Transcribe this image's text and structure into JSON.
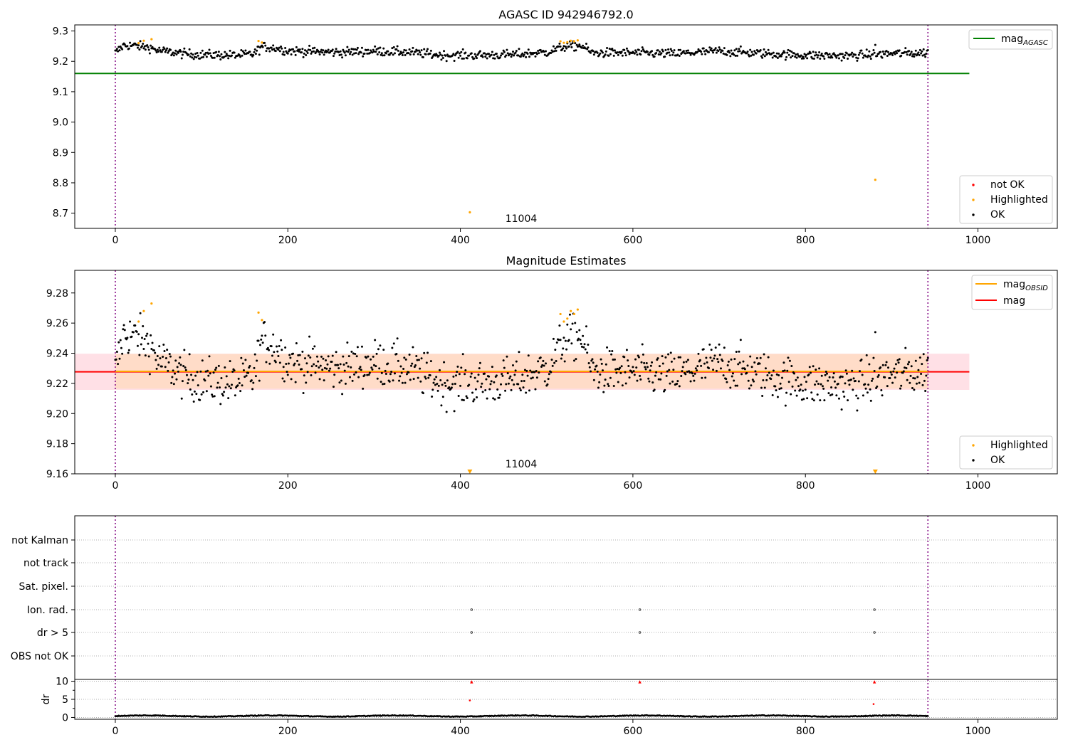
{
  "chart_data": [
    {
      "type": "scatter",
      "title": "AGASC ID 942946792.0",
      "xlim": [
        -47,
        1092
      ],
      "ylim": [
        8.65,
        9.32
      ],
      "xticks": [
        0,
        200,
        400,
        600,
        800,
        1000
      ],
      "yticks": [
        8.7,
        8.8,
        8.9,
        9.0,
        9.1,
        9.2,
        9.3
      ],
      "annotation": {
        "text": "11004",
        "x": 471,
        "y": 8.68
      },
      "vlines": [
        0,
        942
      ],
      "reference_lines": [
        {
          "name": "mag_AGASC",
          "value": 9.16,
          "x_range": [
            -47,
            990
          ],
          "color": "#008000"
        }
      ],
      "series": [
        {
          "name": "not OK",
          "color": "#ff0000",
          "points": []
        },
        {
          "name": "Highlighted",
          "color": "#ffa500",
          "points": [
            [
              27,
              9.26
            ],
            [
              33,
              9.268
            ],
            [
              42,
              9.273
            ],
            [
              166,
              9.267
            ],
            [
              170,
              9.262
            ],
            [
              411,
              8.703
            ],
            [
              516,
              9.266
            ],
            [
              520,
              9.261
            ],
            [
              524,
              9.263
            ],
            [
              528,
              9.268
            ],
            [
              532,
              9.266
            ],
            [
              536,
              9.269
            ],
            [
              881,
              8.81
            ]
          ]
        },
        {
          "name": "OK",
          "color": "#000000",
          "description": "~940 black points (one per observation, x = 0 to 942) fluctuating around mag 9.23, read off the plot: x=0 9.228, x=10 9.253, x=20 9.252, x=30 9.249, x=40 9.246, x=50 9.235, x=60 9.232, x=80 9.225, x=100 9.222, x=120 9.221, x=140 9.220, x=160 9.224, x=170 9.248, x=180 9.246, x=190 9.242, x=200 9.235, x=230 9.232, x=260 9.230, x=300 9.234, x=340 9.230, x=380 9.220, x=420 9.220, x=460 9.222, x=500 9.230, x=520 9.248, x=540 9.252, x=550 9.228, x=600 9.228, x=650 9.225, x=700 9.234, x=750 9.226, x=800 9.220, x=850 9.218, x=900 9.226, x=942 9.228; outliers 9.254 at x=881"
        }
      ],
      "legends": [
        {
          "placement": "upper right",
          "entries": [
            "mag_AGASC"
          ]
        },
        {
          "placement": "lower right",
          "entries": [
            "not OK",
            "Highlighted",
            "OK"
          ]
        }
      ]
    },
    {
      "type": "scatter",
      "title": "Magnitude Estimates",
      "xlim": [
        -47,
        1092
      ],
      "ylim": [
        9.16,
        9.295
      ],
      "xticks": [
        0,
        200,
        400,
        600,
        800,
        1000
      ],
      "yticks": [
        9.16,
        9.18,
        9.2,
        9.22,
        9.24,
        9.26,
        9.28
      ],
      "annotation": {
        "text": "11004",
        "x": 471,
        "y": 9.165
      },
      "vlines": [
        0,
        942
      ],
      "reference_lines": [
        {
          "name": "mag",
          "value": 9.2277,
          "x_range": [
            -47,
            990
          ],
          "color": "#ff0000",
          "band": [
            9.2157,
            9.2397
          ],
          "band_color": "#ffe0e6"
        },
        {
          "name": "mag_OBSID",
          "value": 9.228,
          "x_range": [
            0,
            942
          ],
          "color": "#ffa500",
          "band": [
            9.2165,
            9.2395
          ],
          "band_color": "#ffdcc8"
        }
      ],
      "series": [
        {
          "name": "Highlighted",
          "color": "#ffa500",
          "points": [
            [
              27,
              9.261
            ],
            [
              33,
              9.268
            ],
            [
              42,
              9.273
            ],
            [
              166,
              9.267
            ],
            [
              170,
              9.262
            ],
            [
              516,
              9.266
            ],
            [
              520,
              9.261
            ],
            [
              524,
              9.263
            ],
            [
              528,
              9.268
            ],
            [
              532,
              9.266
            ],
            [
              536,
              9.269
            ]
          ],
          "off_scale_markers": [
            411,
            881
          ]
        },
        {
          "name": "OK",
          "color": "#000000",
          "description": "same ~940 OK points as the top panel on an expanded y-scale, spread roughly 9.20 to 9.255 around 9.228"
        }
      ],
      "legends": [
        {
          "placement": "upper right",
          "entries": [
            "mag_OBSID",
            "mag"
          ]
        },
        {
          "placement": "lower right",
          "entries": [
            "Highlighted",
            "OK"
          ]
        }
      ]
    },
    {
      "type": "scatter",
      "title": "",
      "xlim": [
        -47,
        1092
      ],
      "categories": [
        "not Kalman",
        "not track",
        "Sat. pixel.",
        "Ion. rad.",
        "dr > 5",
        "OBS not OK"
      ],
      "flags": {
        "Ion. rad.": [
          413,
          608,
          880
        ],
        "dr > 5": [
          413,
          608,
          880
        ]
      },
      "vlines": [
        0,
        942
      ]
    },
    {
      "type": "scatter",
      "title": "",
      "ylabel": "dr",
      "xlim": [
        -47,
        1092
      ],
      "ylim": [
        -0.5,
        10.5
      ],
      "yticks": [
        0,
        5,
        10
      ],
      "xticks": [
        0,
        200,
        400,
        600,
        800,
        1000
      ],
      "vlines": [
        0,
        942
      ],
      "series": [
        {
          "name": "dr",
          "color": "#000000",
          "description": "black points near dr 0.1-0.6 for x 0-942"
        },
        {
          "name": "dr > 5",
          "color": "#ff0000",
          "points": [
            [
              413,
              9.8
            ],
            [
              608,
              9.8
            ],
            [
              880,
              9.8
            ],
            [
              411,
              4.7
            ],
            [
              879,
              3.7
            ]
          ]
        }
      ]
    }
  ]
}
